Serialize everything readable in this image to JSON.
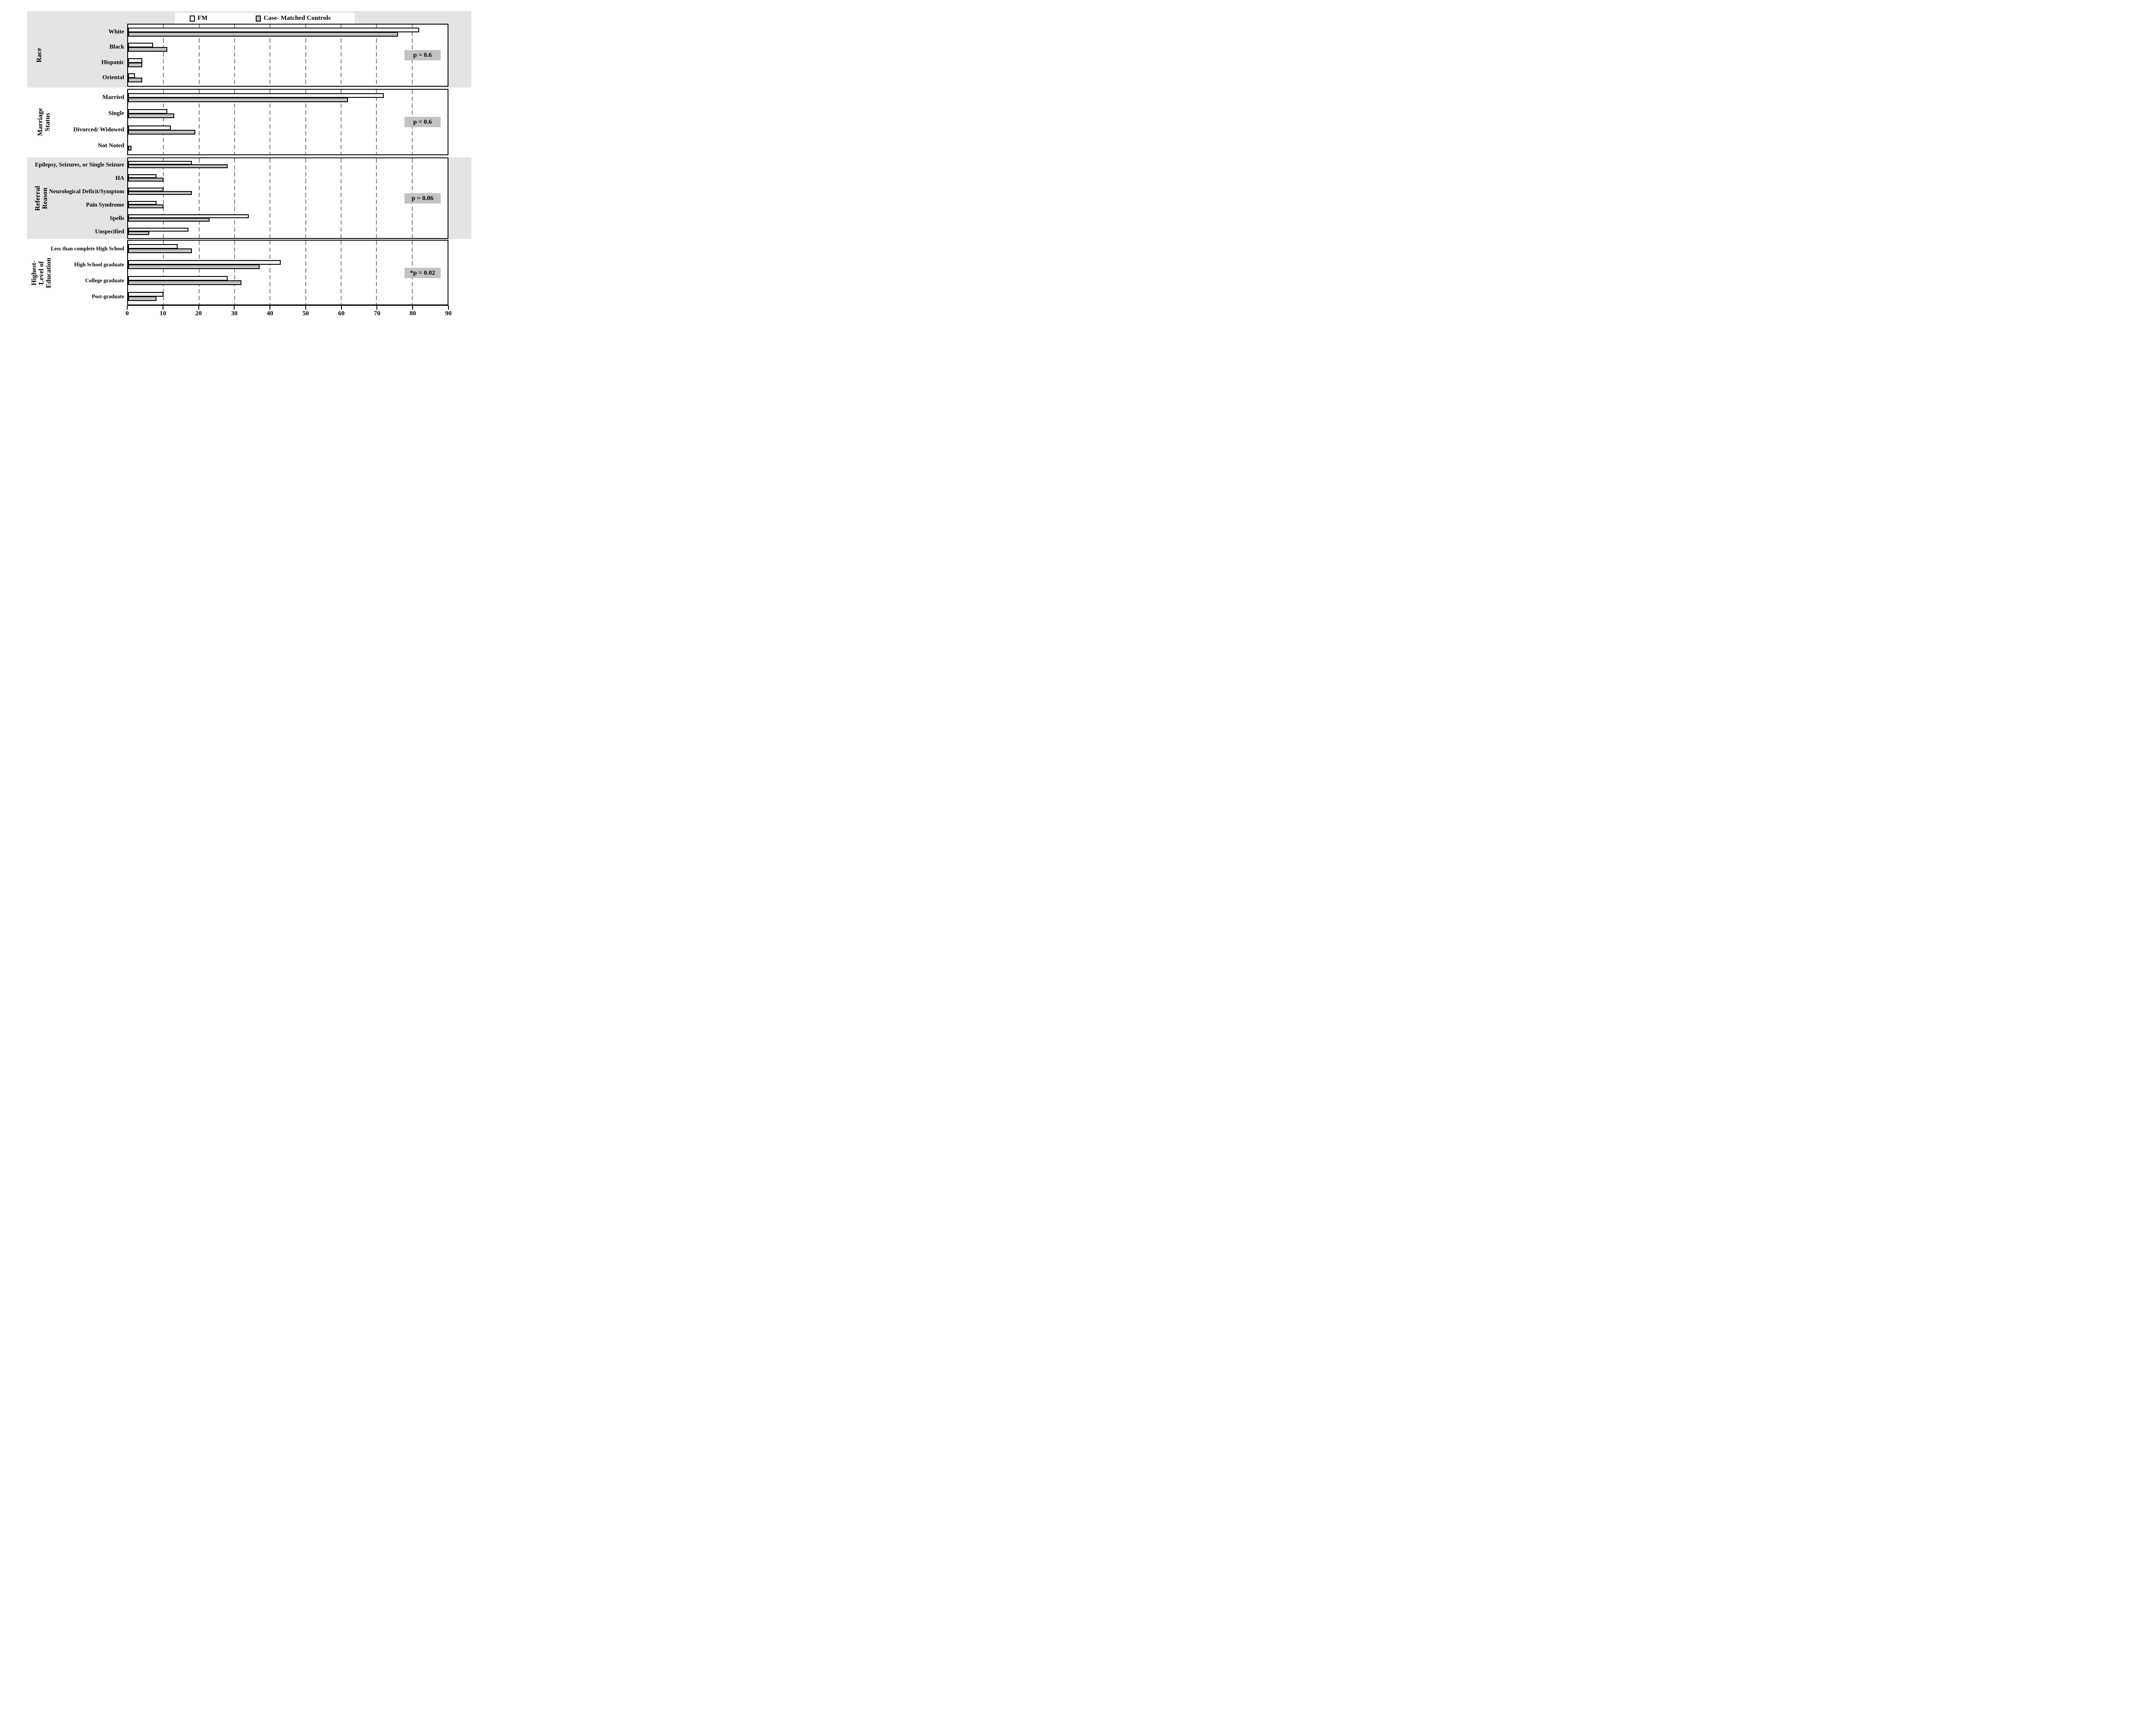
{
  "chart_data": {
    "type": "bar",
    "orientation": "horizontal",
    "title": "",
    "xlabel": "",
    "ylabel": "",
    "x_axis": {
      "min": 0,
      "max": 90,
      "ticks": [
        0,
        10,
        20,
        30,
        40,
        50,
        60,
        70,
        80,
        90
      ],
      "gridlines": [
        10,
        20,
        30,
        40,
        50,
        60,
        70,
        80
      ],
      "grid_style": "dashed"
    },
    "legend": {
      "position": "top",
      "items": [
        {
          "label": "FM",
          "color": "#f1f1f1"
        },
        {
          "label": "Case- Matched Controls",
          "color": "#c0c0c0"
        }
      ]
    },
    "sections": [
      {
        "id": "race",
        "label_lines": [
          "Race"
        ],
        "p_value_label": "p = 0.6",
        "band_color": "#e5e4e4",
        "categories": [
          {
            "name": "White",
            "fm": 82,
            "control": 76
          },
          {
            "name": "Black",
            "fm": 7,
            "control": 11
          },
          {
            "name": "Hispanic",
            "fm": 4,
            "control": 4
          },
          {
            "name": "Oriental",
            "fm": 2,
            "control": 4
          }
        ]
      },
      {
        "id": "marriage-status",
        "label_lines": [
          "Marriage",
          "Status"
        ],
        "p_value_label": "p = 0.6",
        "band_color": null,
        "categories": [
          {
            "name": "Married",
            "fm": 72,
            "control": 62
          },
          {
            "name": "Single",
            "fm": 11,
            "control": 13
          },
          {
            "name": "Divorced/ Widowed",
            "fm": 12,
            "control": 19
          },
          {
            "name": "Not Noted",
            "fm": 0,
            "control": 1
          }
        ]
      },
      {
        "id": "referral-reason",
        "label_lines": [
          "Referral",
          "Reason"
        ],
        "p_value_label": "p = 0.06",
        "band_color": "#e5e4e4",
        "categories": [
          {
            "name": "Epilepsy, Seizures, or Single Seizure",
            "fm": 18,
            "control": 28
          },
          {
            "name": "HA",
            "fm": 8,
            "control": 10
          },
          {
            "name": "Neurological Deficit/Symptom",
            "fm": 10,
            "control": 18
          },
          {
            "name": "Pain Syndrome",
            "fm": 8,
            "control": 10
          },
          {
            "name": "Spells",
            "fm": 34,
            "control": 23
          },
          {
            "name": "Unspecified",
            "fm": 17,
            "control": 6
          }
        ]
      },
      {
        "id": "education",
        "label_lines": [
          "Highest-",
          "Level of",
          "Education"
        ],
        "p_value_label": "*p = 0.02",
        "band_color": null,
        "categories": [
          {
            "name": "Less than complete High School",
            "fm": 14,
            "control": 18
          },
          {
            "name": "High School graduate",
            "fm": 43,
            "control": 37
          },
          {
            "name": "College graduate",
            "fm": 28,
            "control": 32
          },
          {
            "name": "Post-graduate",
            "fm": 10,
            "control": 8
          }
        ]
      }
    ],
    "colors": {
      "fm_fill": "#f1f1f1",
      "control_fill": "#c0c0c0",
      "bar_border": "#000000",
      "p_box_fill": "#c3c3c3",
      "grid_color": "#808080",
      "band_fill": "#e5e4e4"
    }
  }
}
